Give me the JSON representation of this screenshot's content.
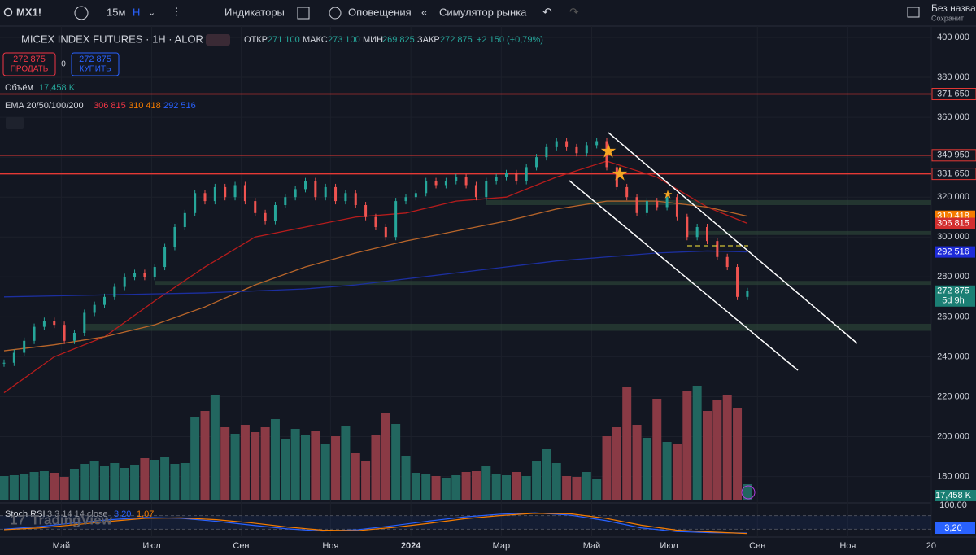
{
  "toolbar": {
    "symbol": "MX1!",
    "interval": "15м",
    "bar_type": "Н",
    "indicators": "Индикаторы",
    "alerts": "Оповещения",
    "replay": "Симулятор рынка",
    "layout_name": "Без назва",
    "save": "Сохранит"
  },
  "legend": {
    "title": "MICEX INDEX FUTURES · 1H · ALOR",
    "open_label": "ОТКР",
    "open": "271 100",
    "high_label": "МАКС",
    "high": "273 100",
    "low_label": "МИН",
    "low": "269 825",
    "close_label": "ЗАКР",
    "close": "272 875",
    "change": "+2 150 (+0,79%)"
  },
  "trade": {
    "sell_price": "272 875",
    "sell": "ПРОДАТЬ",
    "spread": "0",
    "buy_price": "272 875",
    "buy": "КУПИТЬ"
  },
  "volume_legend": {
    "label": "Объём",
    "value": "17,458 K"
  },
  "ema_legend": {
    "label": "EMA 20/50/100/200"
  },
  "stoch_legend": {
    "label": "Stoch RSI",
    "params": "3 3 14 14 close",
    "k": "3,20",
    "d": "1,07"
  },
  "watermark": "TradingView",
  "chart": {
    "ylim": [
      168000,
      405700
    ],
    "yticks": [
      {
        "value": 400000,
        "label": "400 000"
      },
      {
        "value": 380000,
        "label": "380 000"
      },
      {
        "value": 360000,
        "label": "360 000"
      },
      {
        "value": 340000,
        "label": "340 000"
      },
      {
        "value": 320000,
        "label": "320 000"
      },
      {
        "value": 300000,
        "label": "300 000"
      },
      {
        "value": 280000,
        "label": "280 000"
      },
      {
        "value": 260000,
        "label": "260 000"
      },
      {
        "value": 240000,
        "label": "240 000"
      },
      {
        "value": 220000,
        "label": "220 000"
      },
      {
        "value": 200000,
        "label": "200 000"
      },
      {
        "value": 180000,
        "label": "180 000"
      }
    ],
    "xticks": [
      {
        "value": 5.7,
        "label": "Май"
      },
      {
        "value": 14.7,
        "label": "Июл"
      },
      {
        "value": 23.6,
        "label": "Сен"
      },
      {
        "value": 32.5,
        "label": "Ноя"
      },
      {
        "value": 40.5,
        "label": "2024"
      },
      {
        "value": 49.5,
        "label": "Мар"
      },
      {
        "value": 58.5,
        "label": "Май"
      },
      {
        "value": 66.2,
        "label": "Июл"
      },
      {
        "value": 75,
        "label": "Сен"
      },
      {
        "value": 84,
        "label": "Ноя"
      },
      {
        "value": 92.3,
        "label": "20"
      }
    ],
    "closes": [
      237000,
      242000,
      248000,
      255000,
      258000,
      256000,
      248000,
      252000,
      262000,
      266000,
      270000,
      275000,
      280000,
      282000,
      280000,
      285000,
      295000,
      305000,
      312000,
      322000,
      318000,
      325000,
      320000,
      326000,
      318000,
      312000,
      308000,
      316000,
      320000,
      324000,
      328000,
      320000,
      325000,
      318000,
      322000,
      316000,
      310000,
      305000,
      300000,
      318000,
      320000,
      322000,
      328000,
      326000,
      328000,
      330000,
      326000,
      320000,
      328000,
      330000,
      332000,
      328000,
      335000,
      340000,
      345000,
      348000,
      345000,
      342000,
      346000,
      348000,
      335000,
      325000,
      320000,
      312000,
      318000,
      315000,
      320000,
      310000,
      300000,
      305000,
      298000,
      290000,
      285000,
      270000,
      272875
    ],
    "volumes": [
      60,
      62,
      66,
      70,
      72,
      68,
      58,
      78,
      90,
      96,
      84,
      92,
      80,
      86,
      104,
      100,
      108,
      90,
      92,
      206,
      220,
      260,
      180,
      164,
      186,
      168,
      180,
      200,
      150,
      176,
      160,
      170,
      140,
      158,
      184,
      116,
      96,
      160,
      216,
      188,
      110,
      68,
      64,
      60,
      56,
      62,
      70,
      72,
      84,
      66,
      62,
      70,
      60,
      96,
      126,
      92,
      60,
      58,
      70,
      52,
      158,
      180,
      280,
      186,
      154,
      250,
      144,
      138,
      270,
      282,
      220,
      246,
      258,
      228,
      40
    ],
    "vlim": [
      0,
      320
    ],
    "ema_x": [
      0,
      5,
      10,
      15,
      20,
      25,
      30,
      35,
      40,
      45,
      50,
      55,
      60,
      65,
      70,
      74
    ],
    "ema": [
      {
        "color": "#b71c1c",
        "values": [
          222000,
          240000,
          250000,
          268000,
          285000,
          300000,
          305000,
          310000,
          312000,
          318000,
          320000,
          330000,
          338000,
          330000,
          315000,
          306815
        ]
      },
      {
        "color": "#b8652a",
        "values": [
          243000,
          246000,
          250000,
          256000,
          265000,
          276000,
          285000,
          292000,
          298000,
          303000,
          308000,
          314000,
          318000,
          318000,
          315000,
          310418
        ]
      },
      {
        "color": "#1c2fa0",
        "values": [
          270000,
          270500,
          271000,
          271500,
          272000,
          273000,
          274000,
          276000,
          279000,
          282000,
          285000,
          288000,
          290000,
          292000,
          293000,
          292516
        ]
      }
    ],
    "levels": [
      {
        "value": 371650,
        "label": "371 650"
      },
      {
        "value": 340950,
        "label": "340 950"
      },
      {
        "value": 331650,
        "label": "331 650"
      }
    ],
    "zones": [
      {
        "from": 48,
        "range": [
          316000,
          318500
        ]
      },
      {
        "from": 68,
        "range": [
          301000,
          303000
        ]
      },
      {
        "from": 15,
        "range": [
          276000,
          278000
        ]
      },
      {
        "from": 8,
        "range": [
          253000,
          256500
        ]
      }
    ],
    "badges": [
      {
        "value": 310418,
        "label": "310 418",
        "color": "#f57c00"
      },
      {
        "value": 306815,
        "label": "306 815",
        "color": "#d32f2f"
      },
      {
        "value": 292516,
        "label": "292 516",
        "color": "#1e2bd8"
      },
      {
        "value": 272875,
        "label": "272 875",
        "color": "#1b7f74",
        "sub": "5d 9h"
      }
    ],
    "stoch": {
      "ylim": [
        0,
        100
      ],
      "tick": {
        "value": 100,
        "label": "100,00"
      },
      "k": [
        20,
        32,
        48,
        62,
        72,
        68,
        55,
        38,
        22,
        12,
        18,
        36,
        56,
        74,
        86,
        92,
        82,
        58,
        26,
        10,
        5,
        3.2
      ],
      "d": [
        18,
        26,
        40,
        55,
        68,
        70,
        62,
        48,
        30,
        16,
        14,
        28,
        46,
        66,
        80,
        90,
        88,
        68,
        38,
        16,
        8,
        1.07
      ]
    }
  }
}
